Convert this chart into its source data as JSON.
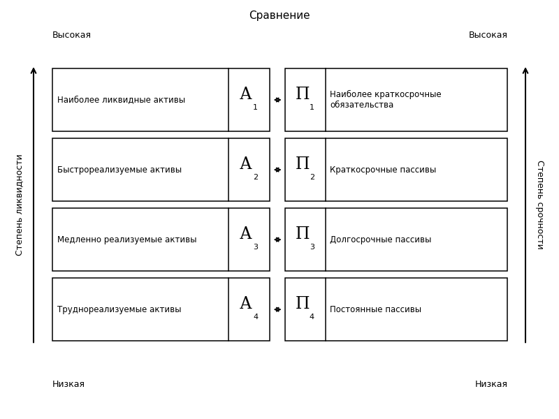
{
  "title": "Сравнение",
  "left_axis_label": "Степень ликвидности",
  "right_axis_label": "Степень срочности",
  "top_left": "Высокая",
  "top_right": "Высокая",
  "bottom_left": "Низкая",
  "bottom_right": "Низкая",
  "rows": [
    {
      "left_text": "Наиболее ликвидные активы",
      "left_symbol": "А",
      "left_subscript": "1",
      "right_symbol": "П",
      "right_subscript": "1",
      "right_text": "Наиболее краткосрочные\nобязательства"
    },
    {
      "left_text": "Быстрореализуемые активы",
      "left_symbol": "А",
      "left_subscript": "2",
      "right_symbol": "П",
      "right_subscript": "2",
      "right_text": "Краткосрочные пассивы"
    },
    {
      "left_text": "Медленно реализуемые активы",
      "left_symbol": "А",
      "left_subscript": "3",
      "right_symbol": "П",
      "right_subscript": "3",
      "right_text": "Долгосрочные пассивы"
    },
    {
      "left_text": "Труднореализуемые активы",
      "left_symbol": "А",
      "left_subscript": "4",
      "right_symbol": "П",
      "right_subscript": "4",
      "right_text": "Постоянные пассивы"
    }
  ],
  "background_color": "#ffffff",
  "box_edge_color": "#000000",
  "text_color": "#000000",
  "arrow_color": "#000000",
  "fig_width": 8.0,
  "fig_height": 6.0,
  "dpi": 100
}
